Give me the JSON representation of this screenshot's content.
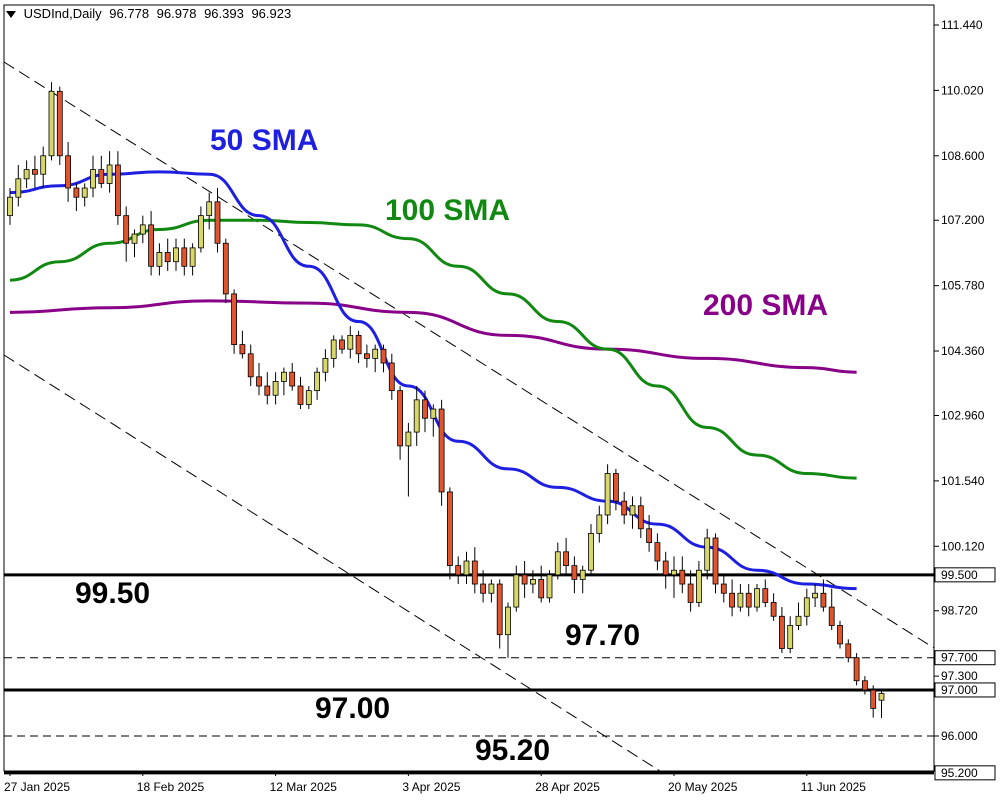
{
  "header": {
    "symbol": "USDInd,Daily",
    "ohlc": [
      "96.778",
      "96.978",
      "96.393",
      "96.923"
    ]
  },
  "annotations": {
    "sma50": "50 SMA",
    "sma100": "100 SMA",
    "sma200": "200 SMA",
    "level_9950": "99.50",
    "level_9770": "97.70",
    "level_9700": "97.00",
    "level_9520": "95.20"
  },
  "colors": {
    "bull": "#d8d86a",
    "bear": "#e0542e",
    "sma50": "#1f1fe0",
    "sma100": "#118811",
    "sma200": "#880088"
  },
  "chart_data": {
    "type": "candlestick",
    "title": "USDInd,Daily",
    "y_ticks": [
      111.44,
      110.02,
      108.6,
      107.2,
      105.78,
      104.36,
      102.96,
      101.54,
      100.12,
      98.72,
      97.3,
      96.0
    ],
    "y_tick_labels": [
      "111.440",
      "110.020",
      "108.600",
      "107.200",
      "105.780",
      "104.360",
      "102.960",
      "101.540",
      "100.120",
      "98.720",
      "97.300",
      "96.000"
    ],
    "price_labels": [
      {
        "value": 99.5,
        "label": "99.500"
      },
      {
        "value": 97.7,
        "label": "97.700"
      },
      {
        "value": 97.0,
        "label": "97.000"
      },
      {
        "value": 95.2,
        "label": "95.200"
      }
    ],
    "horizontal_levels": [
      {
        "value": 99.5,
        "style": "solid"
      },
      {
        "value": 97.7,
        "style": "dashed"
      },
      {
        "value": 97.0,
        "style": "solid"
      },
      {
        "value": 96.0,
        "style": "dashed"
      },
      {
        "value": 95.2,
        "style": "solid"
      }
    ],
    "x_labels": [
      {
        "i": 0,
        "label": "27 Jan 2025"
      },
      {
        "i": 16,
        "label": "18 Feb 2025"
      },
      {
        "i": 32,
        "label": "12 Mar 2025"
      },
      {
        "i": 48,
        "label": "3 Apr 2025"
      },
      {
        "i": 64,
        "label": "28 Apr 2025"
      },
      {
        "i": 80,
        "label": "20 May 2025"
      },
      {
        "i": 96,
        "label": "11 Jun 2025"
      }
    ],
    "candles": [
      [
        107.3,
        107.9,
        107.1,
        107.7
      ],
      [
        107.7,
        108.4,
        107.5,
        108.1
      ],
      [
        108.1,
        108.5,
        107.9,
        108.3
      ],
      [
        108.3,
        108.6,
        107.9,
        108.2
      ],
      [
        108.2,
        108.8,
        107.9,
        108.6
      ],
      [
        108.6,
        110.2,
        108.5,
        110.0
      ],
      [
        110.0,
        110.1,
        108.4,
        108.6
      ],
      [
        108.6,
        108.9,
        107.6,
        107.9
      ],
      [
        107.9,
        108.0,
        107.4,
        107.7
      ],
      [
        107.7,
        108.0,
        107.5,
        107.9
      ],
      [
        107.9,
        108.6,
        107.7,
        108.3
      ],
      [
        108.3,
        108.6,
        107.9,
        108.0
      ],
      [
        108.0,
        108.7,
        107.8,
        108.4
      ],
      [
        108.4,
        108.7,
        107.1,
        107.3
      ],
      [
        107.3,
        107.5,
        106.3,
        106.7
      ],
      [
        106.7,
        107.0,
        106.4,
        106.9
      ],
      [
        106.9,
        107.3,
        106.7,
        107.1
      ],
      [
        107.1,
        107.4,
        106.0,
        106.2
      ],
      [
        106.2,
        106.7,
        106.0,
        106.5
      ],
      [
        106.5,
        106.8,
        106.1,
        106.3
      ],
      [
        106.3,
        106.8,
        106.1,
        106.6
      ],
      [
        106.6,
        106.8,
        106.0,
        106.2
      ],
      [
        106.2,
        106.7,
        106.0,
        106.6
      ],
      [
        106.6,
        107.5,
        106.5,
        107.3
      ],
      [
        107.3,
        107.8,
        107.0,
        107.6
      ],
      [
        107.6,
        107.9,
        106.5,
        106.7
      ],
      [
        106.7,
        106.8,
        105.4,
        105.6
      ],
      [
        105.6,
        105.7,
        104.3,
        104.5
      ],
      [
        104.5,
        104.8,
        104.2,
        104.3
      ],
      [
        104.3,
        104.5,
        103.6,
        103.8
      ],
      [
        103.8,
        104.1,
        103.4,
        103.6
      ],
      [
        103.6,
        103.9,
        103.2,
        103.4
      ],
      [
        103.4,
        103.9,
        103.2,
        103.7
      ],
      [
        103.7,
        104.0,
        103.4,
        103.9
      ],
      [
        103.9,
        104.1,
        103.5,
        103.6
      ],
      [
        103.6,
        103.8,
        103.1,
        103.2
      ],
      [
        103.2,
        103.6,
        103.1,
        103.5
      ],
      [
        103.5,
        104.0,
        103.3,
        103.9
      ],
      [
        103.9,
        104.4,
        103.7,
        104.2
      ],
      [
        104.2,
        104.7,
        104.0,
        104.6
      ],
      [
        104.6,
        104.7,
        104.3,
        104.4
      ],
      [
        104.4,
        104.9,
        104.2,
        104.7
      ],
      [
        104.7,
        104.8,
        104.1,
        104.3
      ],
      [
        104.3,
        104.5,
        104.0,
        104.2
      ],
      [
        104.2,
        104.5,
        103.9,
        104.4
      ],
      [
        104.4,
        104.5,
        103.9,
        104.1
      ],
      [
        104.1,
        104.3,
        103.3,
        103.5
      ],
      [
        103.5,
        103.6,
        102.0,
        102.3
      ],
      [
        102.3,
        102.8,
        101.2,
        102.6
      ],
      [
        102.6,
        103.6,
        102.3,
        103.3
      ],
      [
        103.3,
        103.5,
        102.6,
        102.9
      ],
      [
        102.9,
        103.2,
        102.5,
        103.1
      ],
      [
        103.1,
        103.3,
        101.0,
        101.3
      ],
      [
        101.3,
        101.4,
        99.4,
        99.7
      ],
      [
        99.7,
        99.9,
        99.3,
        99.5
      ],
      [
        99.5,
        100.0,
        99.3,
        99.8
      ],
      [
        99.8,
        100.1,
        99.1,
        99.3
      ],
      [
        99.3,
        99.6,
        98.9,
        99.1
      ],
      [
        99.1,
        99.4,
        98.9,
        99.3
      ],
      [
        99.3,
        99.4,
        97.9,
        98.2
      ],
      [
        98.2,
        98.9,
        97.7,
        98.8
      ],
      [
        98.8,
        99.7,
        98.7,
        99.5
      ],
      [
        99.5,
        99.8,
        99.0,
        99.3
      ],
      [
        99.3,
        99.6,
        99.1,
        99.4
      ],
      [
        99.4,
        99.7,
        98.9,
        99.0
      ],
      [
        99.0,
        99.6,
        98.9,
        99.5
      ],
      [
        99.5,
        100.2,
        99.4,
        100.0
      ],
      [
        100.0,
        100.3,
        99.5,
        99.7
      ],
      [
        99.7,
        99.9,
        99.1,
        99.4
      ],
      [
        99.4,
        99.7,
        99.1,
        99.6
      ],
      [
        99.6,
        100.6,
        99.5,
        100.4
      ],
      [
        100.4,
        101.0,
        100.2,
        100.8
      ],
      [
        100.8,
        101.9,
        100.6,
        101.7
      ],
      [
        101.7,
        101.8,
        100.9,
        101.1
      ],
      [
        101.1,
        101.3,
        100.6,
        100.8
      ],
      [
        100.8,
        101.2,
        100.5,
        101.0
      ],
      [
        101.0,
        101.2,
        100.3,
        100.5
      ],
      [
        100.5,
        100.8,
        100.0,
        100.2
      ],
      [
        100.2,
        100.4,
        99.6,
        99.8
      ],
      [
        99.8,
        100.0,
        99.2,
        99.5
      ],
      [
        99.5,
        99.9,
        99.0,
        99.6
      ],
      [
        99.6,
        99.9,
        99.1,
        99.3
      ],
      [
        99.3,
        99.6,
        98.7,
        98.9
      ],
      [
        98.9,
        99.8,
        98.8,
        99.6
      ],
      [
        99.6,
        100.5,
        99.4,
        100.3
      ],
      [
        100.3,
        100.4,
        99.1,
        99.3
      ],
      [
        99.3,
        99.5,
        98.9,
        99.1
      ],
      [
        99.1,
        99.4,
        98.6,
        98.8
      ],
      [
        98.8,
        99.3,
        98.7,
        99.1
      ],
      [
        99.1,
        99.3,
        98.6,
        98.8
      ],
      [
        98.8,
        99.3,
        98.7,
        99.2
      ],
      [
        99.2,
        99.4,
        98.8,
        98.9
      ],
      [
        98.9,
        99.1,
        98.5,
        98.6
      ],
      [
        98.6,
        98.8,
        97.8,
        97.9
      ],
      [
        97.9,
        98.6,
        97.8,
        98.4
      ],
      [
        98.4,
        98.9,
        98.3,
        98.6
      ],
      [
        98.6,
        99.2,
        98.4,
        99.0
      ],
      [
        99.0,
        99.3,
        98.8,
        99.1
      ],
      [
        99.1,
        99.4,
        98.7,
        98.8
      ],
      [
        98.8,
        99.2,
        98.3,
        98.4
      ],
      [
        98.4,
        98.5,
        97.9,
        98.0
      ],
      [
        98.0,
        98.1,
        97.6,
        97.7
      ],
      [
        97.7,
        97.8,
        97.1,
        97.2
      ],
      [
        97.2,
        97.3,
        96.9,
        97.0
      ],
      [
        97.0,
        97.1,
        96.4,
        96.6
      ],
      [
        96.778,
        96.978,
        96.393,
        96.923
      ]
    ],
    "sma50": [
      [
        0,
        107.8
      ],
      [
        6,
        107.95
      ],
      [
        12,
        108.2
      ],
      [
        18,
        108.25
      ],
      [
        24,
        108.2
      ],
      [
        30,
        107.3
      ],
      [
        36,
        106.2
      ],
      [
        42,
        105.0
      ],
      [
        48,
        103.6
      ],
      [
        54,
        102.4
      ],
      [
        60,
        101.8
      ],
      [
        66,
        101.4
      ],
      [
        72,
        101.1
      ],
      [
        78,
        100.6
      ],
      [
        84,
        100.1
      ],
      [
        90,
        99.6
      ],
      [
        96,
        99.3
      ],
      [
        102,
        99.2
      ]
    ],
    "sma100": [
      [
        0,
        105.9
      ],
      [
        6,
        106.3
      ],
      [
        12,
        106.7
      ],
      [
        18,
        107.0
      ],
      [
        24,
        107.2
      ],
      [
        30,
        107.2
      ],
      [
        36,
        107.15
      ],
      [
        42,
        107.1
      ],
      [
        48,
        106.8
      ],
      [
        54,
        106.2
      ],
      [
        60,
        105.6
      ],
      [
        66,
        105.0
      ],
      [
        72,
        104.4
      ],
      [
        78,
        103.6
      ],
      [
        84,
        102.7
      ],
      [
        90,
        102.1
      ],
      [
        96,
        101.7
      ],
      [
        102,
        101.6
      ]
    ],
    "sma200": [
      [
        0,
        105.2
      ],
      [
        12,
        105.3
      ],
      [
        24,
        105.45
      ],
      [
        36,
        105.4
      ],
      [
        48,
        105.2
      ],
      [
        60,
        104.7
      ],
      [
        72,
        104.4
      ],
      [
        84,
        104.2
      ],
      [
        96,
        104.0
      ],
      [
        102,
        103.9
      ]
    ]
  }
}
